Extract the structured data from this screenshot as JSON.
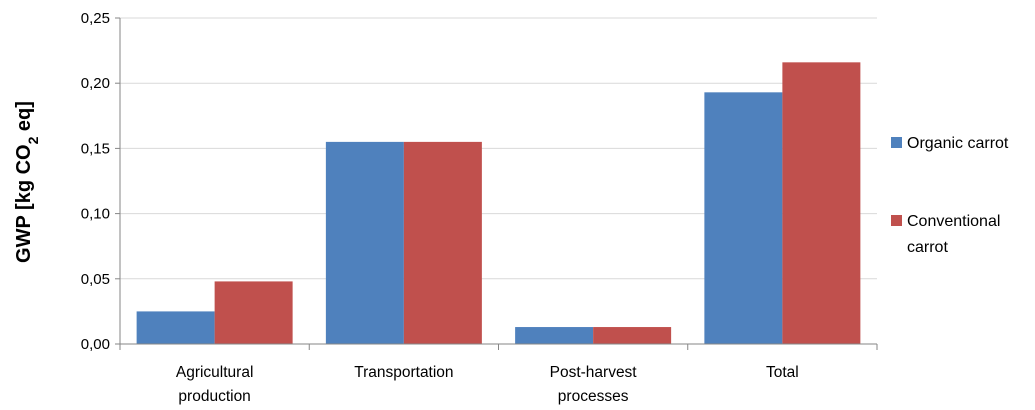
{
  "chart_data": {
    "type": "bar",
    "categories": [
      [
        "Agricultural",
        "production"
      ],
      "Transportation",
      [
        "Post-harvest",
        "processes"
      ],
      "Total"
    ],
    "series": [
      {
        "name": "Organic carrot",
        "color": "#4F81BD",
        "values": [
          0.025,
          0.155,
          0.013,
          0.193
        ]
      },
      {
        "name": "Conventional carrot",
        "color": "#C0504D",
        "values": [
          0.048,
          0.155,
          0.013,
          0.216
        ]
      }
    ],
    "legend_labels": [
      [
        "Organic carrot"
      ],
      [
        "Conventional",
        "carrot"
      ]
    ],
    "ylabel": {
      "prefix": "GWP [kg CO",
      "subscript": "2",
      "suffix": " eq]"
    },
    "xlabel": "",
    "ylim": [
      0,
      0.25
    ],
    "yticks": [
      "0,00",
      "0,05",
      "0,10",
      "0,15",
      "0,20",
      "0,25"
    ],
    "ytick_values": [
      0,
      0.05,
      0.1,
      0.15,
      0.2,
      0.25
    ],
    "grid": true,
    "legend_position": "right",
    "gridline_color": "#D9D9D9",
    "axis_color": "#868686"
  }
}
